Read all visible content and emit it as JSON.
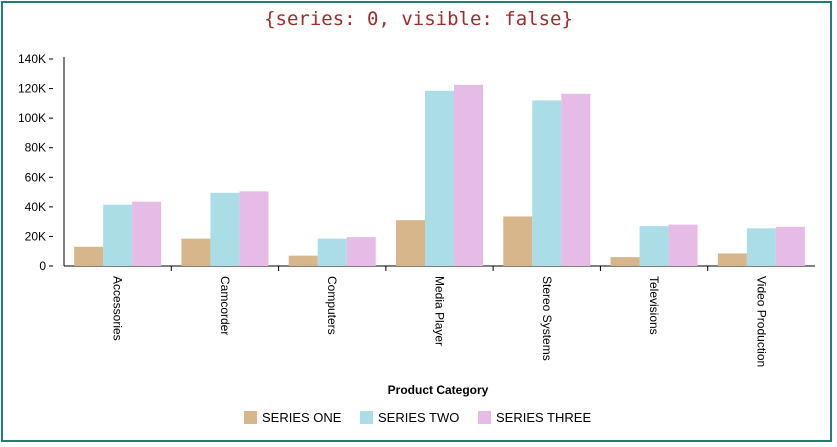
{
  "title": "{series: 0, visible: false}",
  "chart_data": {
    "type": "bar",
    "title": "{series: 0, visible: false}",
    "xlabel": "Product Category",
    "ylabel": "",
    "ylim": [
      0,
      140000
    ],
    "yticks": [
      0,
      20000,
      40000,
      60000,
      80000,
      100000,
      120000,
      140000
    ],
    "ytick_labels": [
      "0",
      "20K",
      "40K",
      "60K",
      "80K",
      "100K",
      "120K",
      "140K"
    ],
    "categories": [
      "Accessories",
      "Camcorder",
      "Computers",
      "Media Player",
      "Stereo Systems",
      "Televisions",
      "Video Production"
    ],
    "series": [
      {
        "name": "SERIES ONE",
        "color": "#d6b68a",
        "values": [
          13000,
          18500,
          7000,
          31000,
          33500,
          6000,
          8500
        ]
      },
      {
        "name": "SERIES TWO",
        "color": "#aadde6",
        "values": [
          41500,
          49500,
          18500,
          118500,
          112000,
          27000,
          25500
        ]
      },
      {
        "name": "SERIES THREE",
        "color": "#e6bce6",
        "values": [
          43500,
          50500,
          19500,
          122500,
          116500,
          28000,
          26500
        ]
      }
    ],
    "legend_position": "bottom",
    "grid": false
  }
}
